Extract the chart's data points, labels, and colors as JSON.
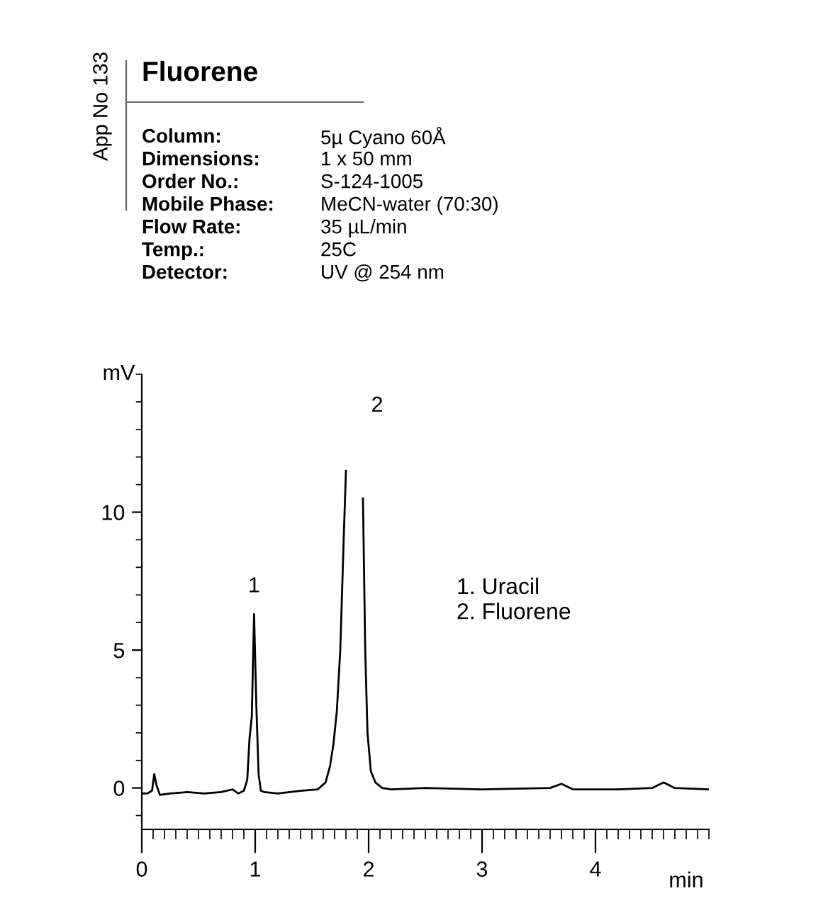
{
  "chart_data": {
    "type": "line",
    "title": "Fluorene",
    "xlabel": "min",
    "ylabel": "mV",
    "x": [
      0,
      0.05,
      0.09,
      0.11,
      0.13,
      0.16,
      0.25,
      0.4,
      0.55,
      0.7,
      0.8,
      0.85,
      0.9,
      0.93,
      0.95,
      0.97,
      0.99,
      1.01,
      1.03,
      1.05,
      1.08,
      1.2,
      1.4,
      1.55,
      1.62,
      1.66,
      1.69,
      1.72,
      1.75,
      1.78,
      1.8,
      1.82,
      1.93,
      1.95,
      1.97,
      1.99,
      2.02,
      2.06,
      2.12,
      2.2,
      2.5,
      3.0,
      3.6,
      3.7,
      3.8,
      4.2,
      4.5,
      4.6,
      4.7,
      5.0
    ],
    "series": [
      {
        "color": "#000000",
        "values": [
          -0.2,
          -0.2,
          -0.1,
          0.5,
          0.1,
          -0.25,
          -0.2,
          -0.15,
          -0.2,
          -0.15,
          -0.05,
          -0.2,
          -0.1,
          0.3,
          1.8,
          2.6,
          6.3,
          3.0,
          0.5,
          -0.1,
          -0.15,
          -0.2,
          -0.1,
          -0.05,
          0.2,
          0.8,
          1.6,
          2.8,
          5.0,
          9.0,
          11.5,
          null,
          null,
          10.5,
          5.0,
          2.0,
          0.6,
          0.2,
          0.0,
          -0.05,
          0.0,
          -0.05,
          0.0,
          0.15,
          -0.05,
          -0.05,
          0.0,
          0.2,
          0.0,
          -0.05
        ]
      }
    ],
    "xlim": [
      0,
      5.0
    ],
    "xticks": [
      0,
      1,
      2,
      3,
      4
    ],
    "ylim": [
      -1.5,
      15
    ],
    "yticks": [
      0,
      5,
      10
    ],
    "grid": false,
    "legend": false,
    "marker": "none",
    "line_style": "solid",
    "annotations": [
      "App No 133",
      "Column:",
      "5µ Cyano 60Å",
      "Dimensions:",
      "1 x 50 mm",
      "Order No.:",
      "S-124-1005",
      "Mobile Phase:",
      "MeCN-water (70:30)",
      "Flow Rate:",
      "35 µL/min",
      "Temp.:",
      "25C",
      "Detector:",
      "UV @ 254 nm",
      {
        "text": "1",
        "x": 0.99,
        "y": 6.3
      },
      "2",
      "1. Uracil",
      "2. Fluorene"
    ]
  }
}
